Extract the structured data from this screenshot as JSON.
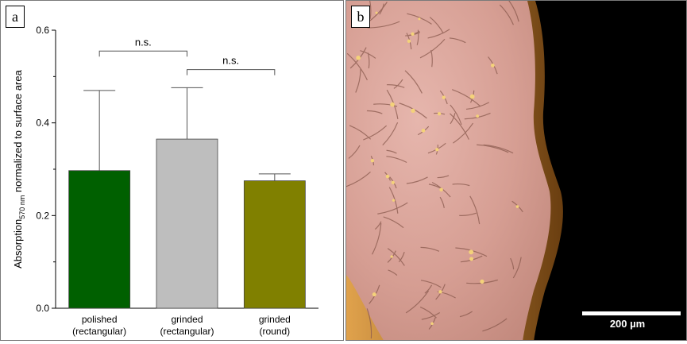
{
  "panels": {
    "a_label": "a",
    "b_label": "b"
  },
  "chart_data": {
    "type": "bar",
    "categories": [
      [
        "polished",
        "(rectangular)"
      ],
      [
        "grinded",
        "(rectangular)"
      ],
      [
        "grinded",
        "(round)"
      ]
    ],
    "values": [
      0.297,
      0.365,
      0.275
    ],
    "error_upper": [
      0.47,
      0.476,
      0.29
    ],
    "bar_colors": [
      "#006000",
      "#bebebe",
      "#808000"
    ],
    "ylabel_main": "Absorption",
    "ylabel_sub": "570 nm",
    "ylabel_rest": " normalized to surface area",
    "ylim": [
      0,
      0.6
    ],
    "yticks": [
      "0.0",
      "0.2",
      "0.4",
      "0.6"
    ],
    "ytick_values": [
      0,
      0.2,
      0.4,
      0.6
    ],
    "grid": false,
    "annotations": [
      {
        "text": "n.s.",
        "from": 0,
        "to": 1,
        "level": 0.555
      },
      {
        "text": "n.s.",
        "from": 1,
        "to": 2,
        "level": 0.515
      }
    ]
  },
  "micrograph": {
    "scale_bar_label": "200 µm",
    "description_colors": {
      "tissue": "#d8a49a",
      "background": "#000000",
      "edge": "#c98a3a"
    }
  }
}
